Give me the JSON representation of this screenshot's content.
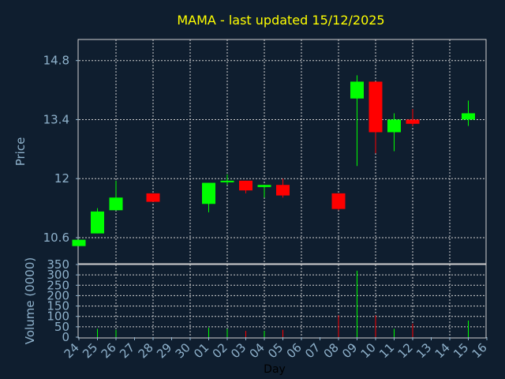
{
  "chart_data": [
    {
      "type": "candlestick",
      "title": "MAMA - last updated 15/12/2025",
      "ylabel": "Price",
      "xlabel": "Day",
      "ylim": [
        10.0,
        15.3
      ],
      "yticks": [
        10.6,
        12,
        13.4,
        14.8
      ],
      "ytick_labels": [
        "10.6",
        "12",
        "13.4",
        "14.8"
      ],
      "x_tick_labels": [
        "24",
        "25",
        "26",
        "27",
        "28",
        "29",
        "30",
        "01",
        "02",
        "03",
        "04",
        "05",
        "06",
        "07",
        "08",
        "09",
        "10",
        "11",
        "12",
        "13",
        "14",
        "15",
        "16"
      ],
      "grid": true,
      "candles": [
        {
          "x": 0,
          "open": 10.4,
          "high": 10.55,
          "low": 10.4,
          "close": 10.55
        },
        {
          "x": 1,
          "open": 10.7,
          "high": 11.3,
          "low": 10.7,
          "close": 11.22
        },
        {
          "x": 2,
          "open": 11.25,
          "high": 11.95,
          "low": 11.25,
          "close": 11.55
        },
        {
          "x": 4,
          "open": 11.65,
          "high": 11.65,
          "low": 11.45,
          "close": 11.45
        },
        {
          "x": 7,
          "open": 11.4,
          "high": 11.9,
          "low": 11.2,
          "close": 11.9
        },
        {
          "x": 8,
          "open": 11.92,
          "high": 12.1,
          "low": 11.85,
          "close": 11.95
        },
        {
          "x": 9,
          "open": 11.95,
          "high": 11.95,
          "low": 11.65,
          "close": 11.72
        },
        {
          "x": 10,
          "open": 11.8,
          "high": 11.85,
          "low": 11.55,
          "close": 11.85
        },
        {
          "x": 11,
          "open": 11.85,
          "high": 12.0,
          "low": 11.55,
          "close": 11.6
        },
        {
          "x": 14,
          "open": 11.65,
          "high": 11.65,
          "low": 11.25,
          "close": 11.28
        },
        {
          "x": 15,
          "open": 13.9,
          "high": 14.45,
          "low": 12.3,
          "close": 14.3
        },
        {
          "x": 16,
          "open": 14.3,
          "high": 14.3,
          "low": 12.6,
          "close": 13.1
        },
        {
          "x": 17,
          "open": 13.1,
          "high": 13.55,
          "low": 12.65,
          "close": 13.4
        },
        {
          "x": 18,
          "open": 13.4,
          "high": 13.65,
          "low": 13.25,
          "close": 13.3
        },
        {
          "x": 21,
          "open": 13.4,
          "high": 13.85,
          "low": 13.25,
          "close": 13.55
        }
      ]
    },
    {
      "type": "bar",
      "ylabel": "Volume (0000)",
      "ylim": [
        0,
        350
      ],
      "yticks": [
        0,
        50,
        100,
        150,
        200,
        250,
        300,
        350
      ],
      "ytick_labels": [
        "0",
        "50",
        "100",
        "150",
        "200",
        "250",
        "300",
        "350"
      ],
      "grid": true,
      "bars": [
        {
          "x": 1,
          "value": 40,
          "direction": "up"
        },
        {
          "x": 2,
          "value": 35,
          "direction": "up"
        },
        {
          "x": 7,
          "value": 45,
          "direction": "up"
        },
        {
          "x": 8,
          "value": 40,
          "direction": "up"
        },
        {
          "x": 9,
          "value": 30,
          "direction": "down"
        },
        {
          "x": 10,
          "value": 30,
          "direction": "up"
        },
        {
          "x": 11,
          "value": 35,
          "direction": "down"
        },
        {
          "x": 14,
          "value": 105,
          "direction": "down"
        },
        {
          "x": 15,
          "value": 320,
          "direction": "up"
        },
        {
          "x": 16,
          "value": 105,
          "direction": "down"
        },
        {
          "x": 17,
          "value": 40,
          "direction": "up"
        },
        {
          "x": 18,
          "value": 65,
          "direction": "down"
        },
        {
          "x": 21,
          "value": 80,
          "direction": "up"
        }
      ]
    }
  ],
  "colors": {
    "background": "#0f1e2f",
    "plot_background": "#0f1e2f",
    "title": "#ffff00",
    "axis_text": "#8fb2cc",
    "grid": "#d0d0d0",
    "up": "#00ff00",
    "down": "#ff0000"
  }
}
